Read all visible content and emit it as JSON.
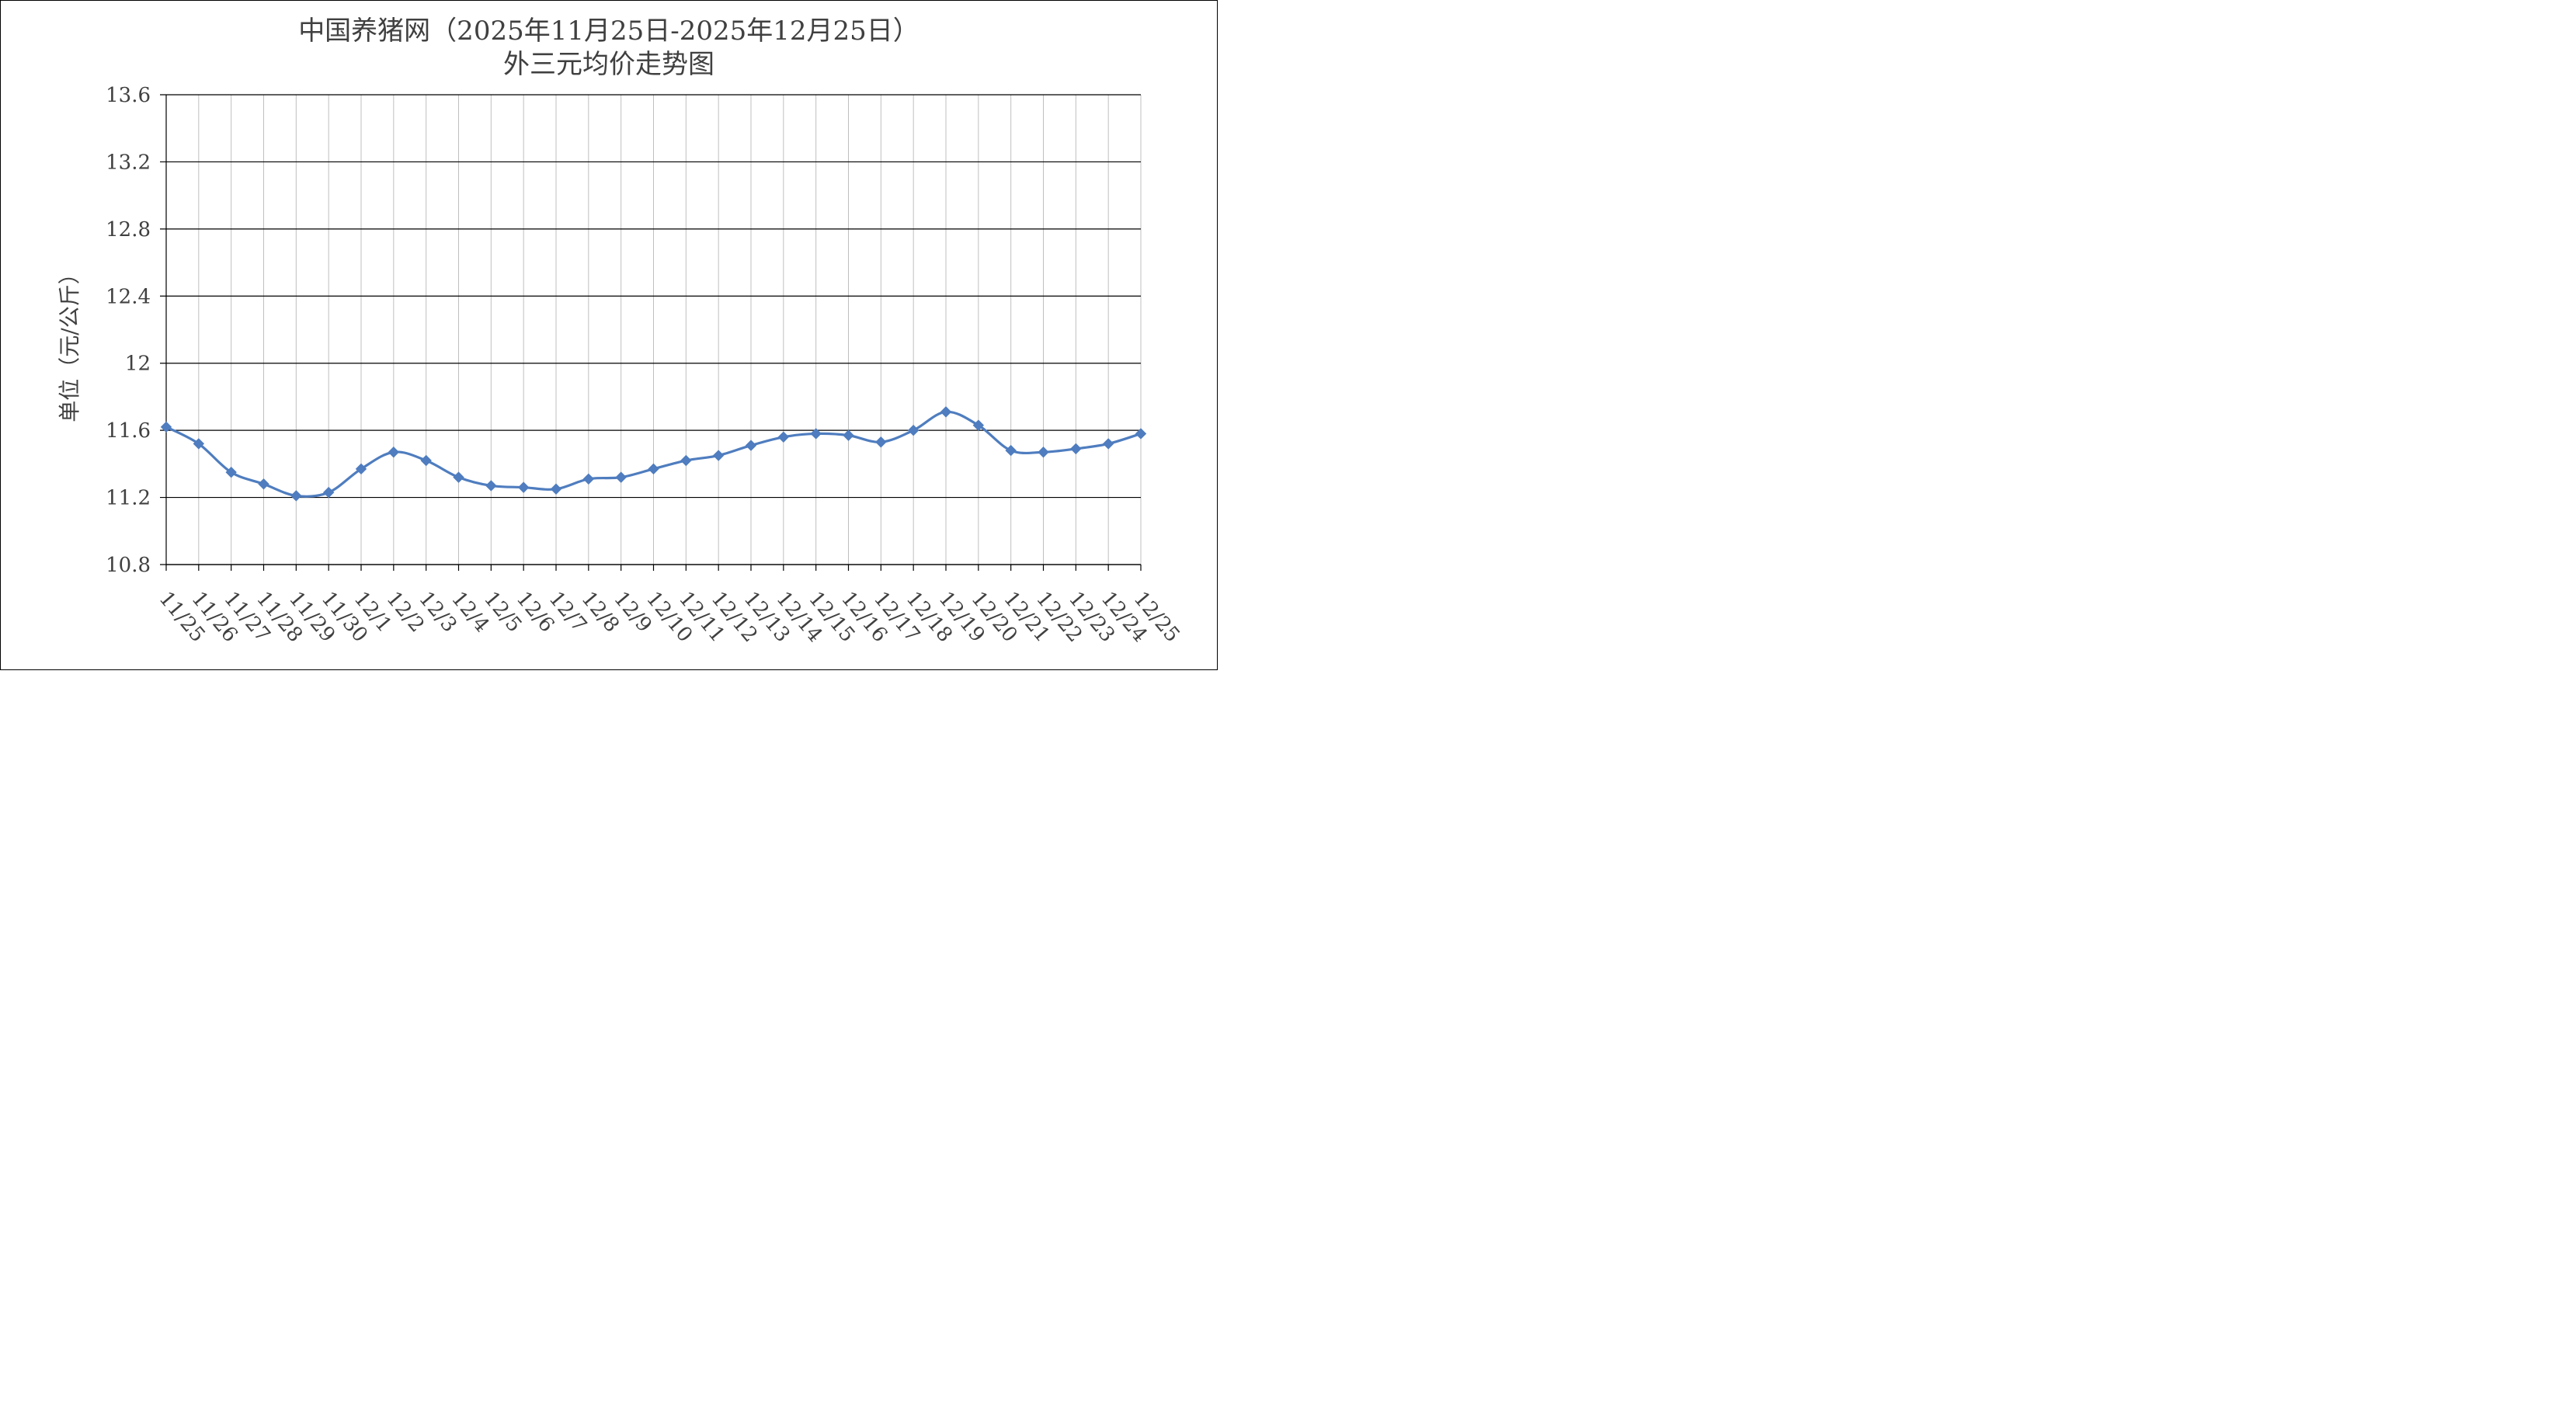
{
  "chart_data": {
    "type": "line",
    "title": "中国养猪网（2025年11月25日-2025年12月25日）",
    "subtitle": "外三元均价走势图",
    "xlabel": "",
    "ylabel": "单位（元/公斤）",
    "ylim": [
      10.8,
      13.6
    ],
    "yticks": [
      "10.8",
      "11.2",
      "11.6",
      "12",
      "12.4",
      "12.8",
      "13.2",
      "13.6"
    ],
    "grid": true,
    "legend": "none",
    "categories": [
      "11/25",
      "11/26",
      "11/27",
      "11/28",
      "11/29",
      "11/30",
      "12/1",
      "12/2",
      "12/3",
      "12/4",
      "12/5",
      "12/6",
      "12/7",
      "12/8",
      "12/9",
      "12/10",
      "12/11",
      "12/12",
      "12/13",
      "12/14",
      "12/15",
      "12/16",
      "12/17",
      "12/18",
      "12/19",
      "12/20",
      "12/21",
      "12/22",
      "12/23",
      "12/24",
      "12/25"
    ],
    "series": [
      {
        "values": [
          11.62,
          11.52,
          11.35,
          11.28,
          11.21,
          11.23,
          11.37,
          11.47,
          11.42,
          11.32,
          11.27,
          11.26,
          11.25,
          11.31,
          11.32,
          11.37,
          11.42,
          11.45,
          11.51,
          11.56,
          11.58,
          11.57,
          11.53,
          11.6,
          11.71,
          11.63,
          11.48,
          11.47,
          11.49,
          11.52,
          11.58
        ],
        "color": "#4F7DBF"
      }
    ],
    "colors": {
      "line": "#4F7DBF",
      "gridline": "#000000",
      "vertical_grid": "#BFBFBF",
      "text": "#404040"
    }
  }
}
